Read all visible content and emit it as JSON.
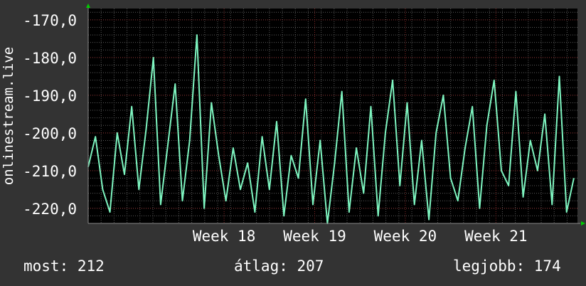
{
  "chart_data": {
    "type": "line",
    "ylabel": "onlinestream.live",
    "y_ticks": [
      -170,
      -180,
      -190,
      -200,
      -210,
      -220
    ],
    "y_tick_labels": [
      "-170,0",
      "-180,0",
      "-190,0",
      "-200,0",
      "-210,0",
      "-220,0"
    ],
    "ylim": [
      -224,
      -167
    ],
    "xlim": [
      16.5,
      21.9
    ],
    "x_ticks": [
      18,
      19,
      20,
      21
    ],
    "x_tick_labels": [
      "Week 18",
      "Week 19",
      "Week 20",
      "Week 21"
    ],
    "x_unit": "week",
    "grid": true,
    "series": [
      {
        "color": "#7ef5c0",
        "x": [
          16.5,
          16.58,
          16.66,
          16.74,
          16.82,
          16.9,
          16.98,
          17.06,
          17.14,
          17.22,
          17.3,
          17.38,
          17.46,
          17.54,
          17.62,
          17.7,
          17.78,
          17.86,
          17.94,
          18.02,
          18.1,
          18.18,
          18.26,
          18.34,
          18.42,
          18.5,
          18.58,
          18.66,
          18.74,
          18.82,
          18.9,
          18.98,
          19.06,
          19.14,
          19.22,
          19.3,
          19.38,
          19.46,
          19.54,
          19.62,
          19.7,
          19.78,
          19.86,
          19.94,
          20.02,
          20.1,
          20.18,
          20.26,
          20.34,
          20.42,
          20.5,
          20.58,
          20.66,
          20.74,
          20.82,
          20.9,
          20.98,
          21.06,
          21.14,
          21.22,
          21.3,
          21.38,
          21.46,
          21.54,
          21.62,
          21.7,
          21.78,
          21.86
        ],
        "values": [
          -209,
          -201,
          -215,
          -221,
          -200,
          -211,
          -193,
          -215,
          -199,
          -180,
          -219,
          -203,
          -187,
          -218,
          -202,
          -174,
          -220,
          -192,
          -206,
          -218,
          -204,
          -215,
          -208,
          -221,
          -201,
          -215,
          -197,
          -222,
          -206,
          -212,
          -191,
          -219,
          -202,
          -224,
          -208,
          -189,
          -221,
          -204,
          -216,
          -193,
          -222,
          -200,
          -186,
          -214,
          -192,
          -219,
          -202,
          -223,
          -200,
          -190,
          -212,
          -218,
          -204,
          -193,
          -220,
          -198,
          -186,
          -210,
          -214,
          -189,
          -217,
          -202,
          -210,
          -195,
          -219,
          -185,
          -221,
          -212
        ]
      }
    ]
  },
  "footer": {
    "now": "most: 212",
    "avg": "átlag: 207",
    "best": "legjobb: 174"
  },
  "colors": {
    "background": "#333333",
    "plot_background": "#000000",
    "line": "#7ef5c0",
    "grid": "#5a5a5a",
    "week_grid": "#8a2a2a",
    "axis_arrow": "#00cc00"
  }
}
